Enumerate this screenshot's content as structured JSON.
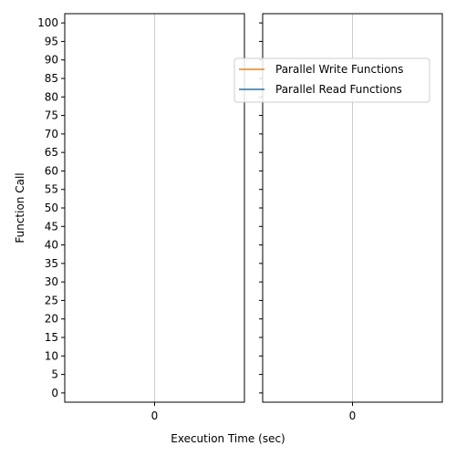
{
  "chart_data": {
    "type": "line",
    "layout": "two side-by-side panels sharing the y axis",
    "xlabel": "Execution Time (sec)",
    "ylabel": "Function Call",
    "ylim": [
      -2.5,
      102.5
    ],
    "yticks": [
      0,
      5,
      10,
      15,
      20,
      25,
      30,
      35,
      40,
      45,
      50,
      55,
      60,
      65,
      70,
      75,
      80,
      85,
      90,
      95,
      100
    ],
    "xlim": [
      -0.5,
      0.5
    ],
    "xticks": [
      0
    ],
    "grid": "x-axis only",
    "panels": [
      {
        "name": "left",
        "show_yticklabels": true,
        "legend": false
      },
      {
        "name": "right",
        "show_yticklabels": false,
        "legend": true,
        "legend_position": "upper-center"
      }
    ],
    "series": [
      {
        "name": "Parallel Write Functions",
        "color": "#ff7f0e",
        "values": []
      },
      {
        "name": "Parallel Read Functions",
        "color": "#1f77b4",
        "values": []
      }
    ]
  }
}
